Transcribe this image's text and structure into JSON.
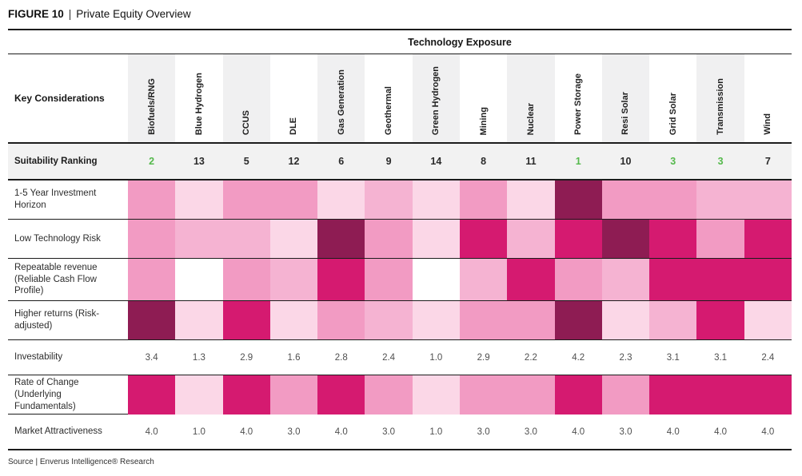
{
  "title": {
    "figure": "FIGURE 10",
    "separator": "|",
    "name": "Private Equity Overview"
  },
  "chart_data": {
    "type": "heatmap",
    "title": "FIGURE 10 | Private Equity Overview",
    "group_header": "Technology Exposure",
    "corner_label": "Key Considerations",
    "columns": [
      "Biofuels/RNG",
      "Blue Hydrogen",
      "CCUS",
      "DLE",
      "Gas Generation",
      "Geothermal",
      "Green Hydrogen",
      "Mining",
      "Nuclear",
      "Power Storage",
      "Resi Solar",
      "Grid Solar",
      "Transmission",
      "Wind"
    ],
    "heat_colors": {
      "0": "#ffffff",
      "1": "#fbd7e7",
      "2": "#f5b3d2",
      "3": "#f29bc3",
      "4": "#d51a70",
      "5": "#8e1c53"
    },
    "rank_highlight_color": "#55b94c",
    "rows": [
      {
        "label": "Suitability Ranking",
        "type": "rank",
        "values": [
          "2",
          "13",
          "5",
          "12",
          "6",
          "9",
          "14",
          "8",
          "11",
          "1",
          "10",
          "3",
          "3",
          "7"
        ],
        "highlighted": [
          0,
          9,
          11,
          12
        ]
      },
      {
        "label": "1-5 Year Investment Horizon",
        "type": "heat",
        "levels": [
          3,
          1,
          3,
          3,
          1,
          2,
          1,
          3,
          1,
          5,
          3,
          3,
          2,
          2
        ]
      },
      {
        "label": "Low Technology Risk",
        "type": "heat",
        "levels": [
          3,
          2,
          2,
          1,
          5,
          3,
          1,
          4,
          2,
          4,
          5,
          4,
          3,
          4
        ]
      },
      {
        "label": "Repeatable revenue (Reliable Cash Flow Profile)",
        "type": "heat",
        "levels": [
          3,
          0,
          3,
          2,
          4,
          3,
          0,
          2,
          4,
          3,
          2,
          4,
          4,
          4
        ]
      },
      {
        "label": "Higher returns (Risk-adjusted)",
        "type": "heat",
        "levels": [
          5,
          1,
          4,
          1,
          3,
          2,
          1,
          3,
          3,
          5,
          1,
          2,
          4,
          1
        ]
      },
      {
        "label": "Investability",
        "type": "value",
        "values": [
          "3.4",
          "1.3",
          "2.9",
          "1.6",
          "2.8",
          "2.4",
          "1.0",
          "2.9",
          "2.2",
          "4.2",
          "2.3",
          "3.1",
          "3.1",
          "2.4"
        ]
      },
      {
        "label": "Rate of Change (Underlying Fundamentals)",
        "type": "heat",
        "levels": [
          4,
          1,
          4,
          3,
          4,
          3,
          1,
          3,
          3,
          4,
          3,
          4,
          4,
          4
        ]
      },
      {
        "label": "Market Attractiveness",
        "type": "value",
        "values": [
          "4.0",
          "1.0",
          "4.0",
          "3.0",
          "4.0",
          "3.0",
          "1.0",
          "3.0",
          "3.0",
          "4.0",
          "3.0",
          "4.0",
          "4.0",
          "4.0"
        ]
      }
    ]
  },
  "source": "Source | Enverus Intelligence® Research"
}
